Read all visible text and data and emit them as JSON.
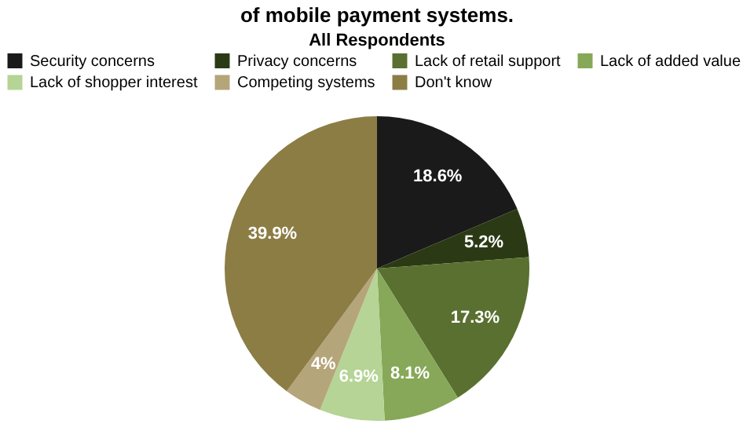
{
  "chart_data": {
    "type": "pie",
    "title": "of mobile payment systems.",
    "subtitle": "All Respondents",
    "categories": [
      "Security concerns",
      "Privacy concerns",
      "Lack of retail support",
      "Lack of added value",
      "Lack of shopper interest",
      "Competing systems",
      "Don't know"
    ],
    "values": [
      18.6,
      5.2,
      17.3,
      8.1,
      6.9,
      4,
      39.9
    ],
    "colors": [
      "#1a1a1a",
      "#2b3a14",
      "#5a7030",
      "#86a858",
      "#b5d495",
      "#b5a57a",
      "#8c7d45"
    ],
    "value_labels": [
      "18.6%",
      "5.2%",
      "17.3%",
      "8.1%",
      "6.9%",
      "4%",
      "39.9%"
    ],
    "legend": "top"
  }
}
